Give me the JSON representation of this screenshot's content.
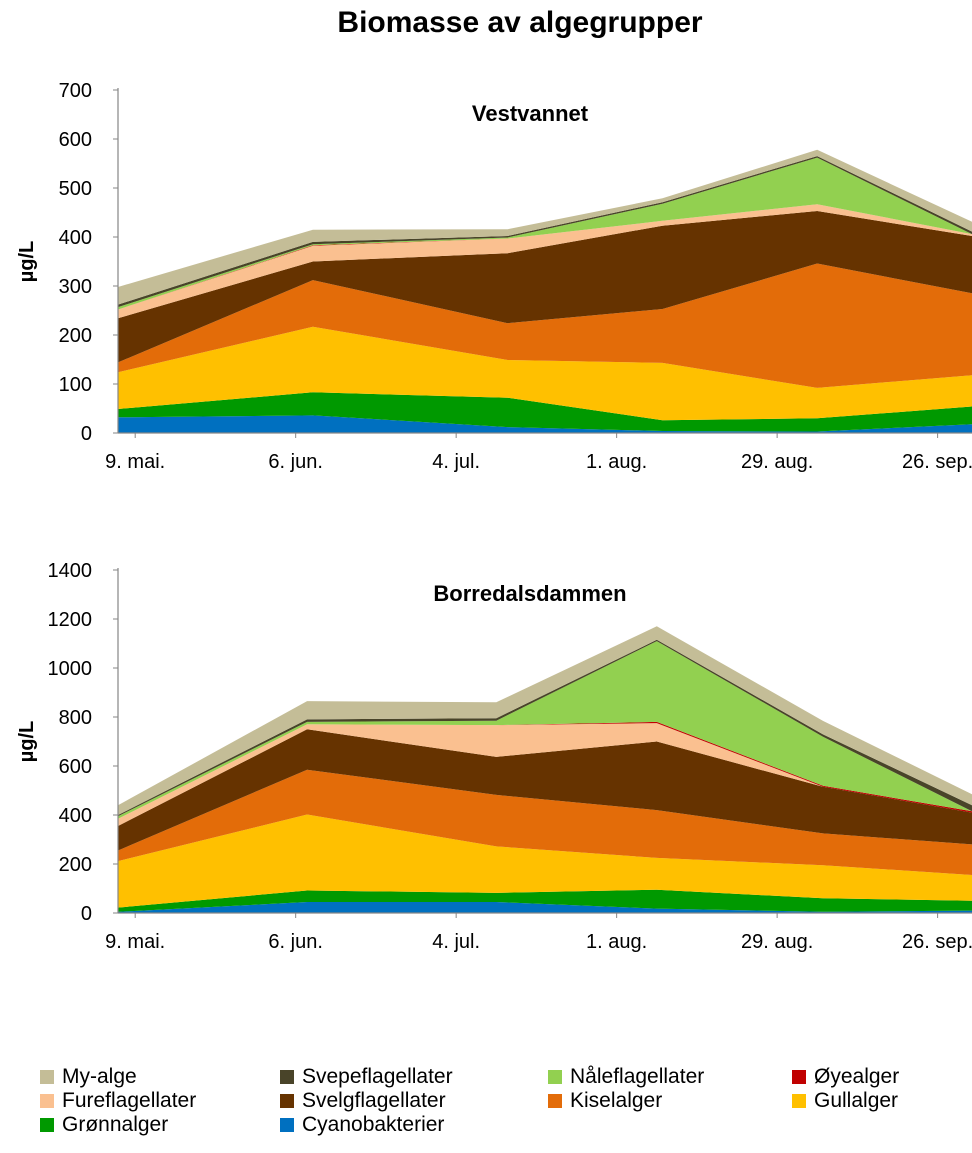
{
  "title": "Biomasse av algegrupper",
  "legend_title": "",
  "series_colors": {
    "My-alge": "#C4BD97",
    "Svepeflagellater": "#494429",
    "Nåleflagellater": "#92D050",
    "Øyealger": "#C00000",
    "Fureflagellater": "#FAC090",
    "Svelgflagellater": "#663300",
    "Kiselalger": "#E36C09",
    "Gullalger": "#FFC000",
    "Grønnalger": "#009900",
    "Cyanobakterier": "#0070C0"
  },
  "legend": [
    "My-alge",
    "Svepeflagellater",
    "Nåleflagellater",
    "Øyealger",
    "Fureflagellater",
    "Svelgflagellater",
    "Kiselalger",
    "Gullalger",
    "Grønnalger",
    "Cyanobakterier"
  ],
  "chart_data": [
    {
      "type": "area",
      "stacked": true,
      "title": "Vestvannet",
      "xlabel": "",
      "ylabel": "µg/L",
      "ylim": [
        0,
        700
      ],
      "yticks": [
        0,
        100,
        200,
        300,
        400,
        500,
        600,
        700
      ],
      "xlim": [
        "2012-05-06",
        "2012-10-02"
      ],
      "xticks": [
        "9. mai.",
        "6. jun.",
        "4. jul.",
        "1. aug.",
        "29. aug.",
        "26. sep."
      ],
      "xtick_dates": [
        "2012-05-09",
        "2012-06-06",
        "2012-07-04",
        "2012-08-01",
        "2012-08-29",
        "2012-09-26"
      ],
      "x": [
        "2012-05-06",
        "2012-06-09",
        "2012-07-13",
        "2012-08-09",
        "2012-09-05",
        "2012-10-02"
      ],
      "series": [
        {
          "name": "Cyanobakterier",
          "values": [
            32,
            36,
            12,
            4,
            3,
            18
          ]
        },
        {
          "name": "Grønnalger",
          "values": [
            17,
            47,
            60,
            22,
            27,
            36
          ]
        },
        {
          "name": "Gullalger",
          "values": [
            75,
            134,
            77,
            117,
            62,
            64
          ]
        },
        {
          "name": "Kiselalger",
          "values": [
            20,
            95,
            75,
            110,
            254,
            167
          ]
        },
        {
          "name": "Svelgflagellater",
          "values": [
            90,
            38,
            143,
            170,
            107,
            117
          ]
        },
        {
          "name": "Fureflagellater",
          "values": [
            18,
            32,
            30,
            10,
            14,
            4
          ]
        },
        {
          "name": "Øyealger",
          "values": [
            0,
            1,
            0,
            0,
            0,
            0
          ]
        },
        {
          "name": "Nåleflagellater",
          "values": [
            5,
            2,
            2,
            35,
            95,
            0
          ]
        },
        {
          "name": "Svepeflagellater",
          "values": [
            5,
            5,
            3,
            3,
            3,
            5
          ]
        },
        {
          "name": "My-alge",
          "values": [
            36,
            25,
            14,
            8,
            13,
            20
          ]
        }
      ]
    },
    {
      "type": "area",
      "stacked": true,
      "title": "Borredalsdammen",
      "xlabel": "",
      "ylabel": "µg/L",
      "ylim": [
        0,
        1400
      ],
      "yticks": [
        0,
        200,
        400,
        600,
        800,
        1000,
        1200,
        1400
      ],
      "xlim": [
        "2012-05-06",
        "2012-10-02"
      ],
      "xticks": [
        "9. mai.",
        "6. jun.",
        "4. jul.",
        "1. aug.",
        "29. aug.",
        "26. sep."
      ],
      "xtick_dates": [
        "2012-05-09",
        "2012-06-06",
        "2012-07-04",
        "2012-08-01",
        "2012-08-29",
        "2012-09-26"
      ],
      "x": [
        "2012-05-06",
        "2012-06-08",
        "2012-07-11",
        "2012-08-08",
        "2012-09-06",
        "2012-10-02"
      ],
      "series": [
        {
          "name": "Cyanobakterier",
          "values": [
            5,
            45,
            45,
            18,
            5,
            10
          ]
        },
        {
          "name": "Grønnalger",
          "values": [
            17,
            47,
            37,
            77,
            55,
            40
          ]
        },
        {
          "name": "Gullalger",
          "values": [
            190,
            310,
            190,
            130,
            135,
            105
          ]
        },
        {
          "name": "Kiselalger",
          "values": [
            43,
            183,
            210,
            195,
            130,
            125
          ]
        },
        {
          "name": "Svelgflagellater",
          "values": [
            100,
            165,
            155,
            280,
            190,
            130
          ]
        },
        {
          "name": "Fureflagellater",
          "values": [
            30,
            20,
            130,
            75,
            0,
            0
          ]
        },
        {
          "name": "Øyealger",
          "values": [
            0,
            0,
            0,
            5,
            4,
            5
          ]
        },
        {
          "name": "Nåleflagellater",
          "values": [
            10,
            10,
            18,
            330,
            200,
            0
          ]
        },
        {
          "name": "Svepeflagellater",
          "values": [
            5,
            10,
            10,
            5,
            10,
            25
          ]
        },
        {
          "name": "My-alge",
          "values": [
            40,
            75,
            65,
            55,
            55,
            45
          ]
        }
      ]
    }
  ]
}
